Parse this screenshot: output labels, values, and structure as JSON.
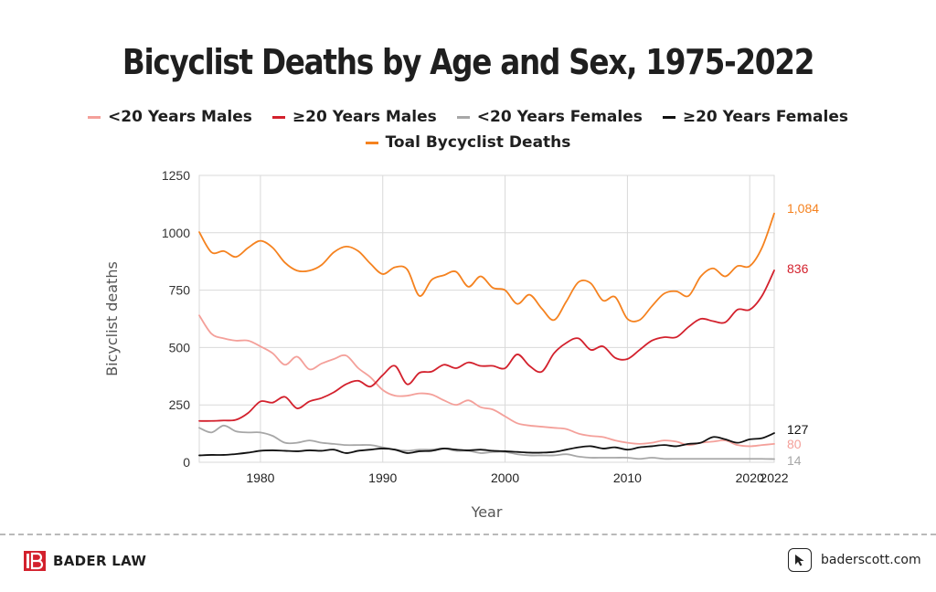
{
  "chart_data": {
    "type": "line",
    "title": "Bicyclist Deaths by Age and Sex, 1975-2022",
    "xlabel": "Year",
    "ylabel": "Bicyclist deaths",
    "xlim": [
      1975,
      2022
    ],
    "ylim": [
      0,
      1250
    ],
    "xticks": [
      "1980",
      "1990",
      "2000",
      "2010",
      "2020",
      "2022"
    ],
    "yticks": [
      "0",
      "250",
      "500",
      "750",
      "1000",
      "1250"
    ],
    "grid": true,
    "legend_position": "top",
    "x": [
      1975,
      1976,
      1977,
      1978,
      1979,
      1980,
      1981,
      1982,
      1983,
      1984,
      1985,
      1986,
      1987,
      1988,
      1989,
      1990,
      1991,
      1992,
      1993,
      1994,
      1995,
      1996,
      1997,
      1998,
      1999,
      2000,
      2001,
      2002,
      2003,
      2004,
      2005,
      2006,
      2007,
      2008,
      2009,
      2010,
      2011,
      2012,
      2013,
      2014,
      2015,
      2016,
      2017,
      2018,
      2019,
      2020,
      2021,
      2022
    ],
    "series": [
      {
        "name": "<20 Years Males",
        "color": "#f4a09a",
        "end_label": "80",
        "values": [
          640,
          560,
          540,
          530,
          530,
          505,
          475,
          425,
          460,
          405,
          430,
          450,
          465,
          410,
          370,
          315,
          290,
          290,
          300,
          295,
          270,
          250,
          270,
          240,
          230,
          200,
          170,
          160,
          155,
          150,
          145,
          125,
          115,
          110,
          95,
          85,
          80,
          85,
          95,
          90,
          75,
          85,
          90,
          95,
          75,
          70,
          75,
          80
        ]
      },
      {
        "name": "≥20 Years Males",
        "color": "#d3212d",
        "end_label": "836",
        "values": [
          180,
          180,
          182,
          185,
          215,
          265,
          260,
          285,
          235,
          265,
          280,
          305,
          340,
          355,
          330,
          380,
          420,
          340,
          390,
          395,
          425,
          410,
          435,
          420,
          420,
          410,
          470,
          420,
          395,
          475,
          520,
          540,
          490,
          505,
          455,
          450,
          490,
          530,
          545,
          545,
          590,
          625,
          615,
          610,
          665,
          665,
          725,
          836
        ]
      },
      {
        "name": "<20 Years Females",
        "color": "#a7a7a7",
        "end_label": "14",
        "values": [
          150,
          130,
          160,
          135,
          130,
          130,
          115,
          85,
          85,
          95,
          85,
          80,
          75,
          75,
          75,
          65,
          55,
          50,
          55,
          55,
          60,
          50,
          50,
          40,
          45,
          45,
          35,
          30,
          30,
          30,
          35,
          25,
          20,
          20,
          20,
          20,
          15,
          20,
          15,
          15,
          15,
          15,
          15,
          15,
          15,
          15,
          15,
          14
        ]
      },
      {
        "name": "≥20 Years Females",
        "color": "#111111",
        "end_label": "127",
        "values": [
          30,
          32,
          32,
          36,
          42,
          50,
          52,
          50,
          48,
          52,
          50,
          55,
          40,
          50,
          55,
          60,
          55,
          40,
          48,
          50,
          60,
          55,
          52,
          55,
          50,
          48,
          45,
          42,
          42,
          45,
          55,
          65,
          70,
          60,
          65,
          55,
          65,
          70,
          75,
          70,
          80,
          85,
          110,
          100,
          85,
          100,
          105,
          127
        ]
      },
      {
        "name": "Toal Bycyclist Deaths",
        "color": "#f5821f",
        "end_label": "1,084",
        "values": [
          1003,
          915,
          920,
          895,
          935,
          965,
          935,
          870,
          835,
          835,
          860,
          915,
          940,
          920,
          865,
          820,
          850,
          840,
          725,
          795,
          815,
          830,
          765,
          810,
          760,
          750,
          690,
          730,
          670,
          620,
          700,
          785,
          780,
          705,
          720,
          625,
          620,
          680,
          735,
          745,
          725,
          810,
          845,
          810,
          855,
          855,
          935,
          1084
        ]
      }
    ]
  },
  "footer": {
    "brand": "BADER LAW",
    "website": "baderscott.com",
    "brand_icon": "bader-law-logo",
    "site_icon": "cursor-icon"
  }
}
